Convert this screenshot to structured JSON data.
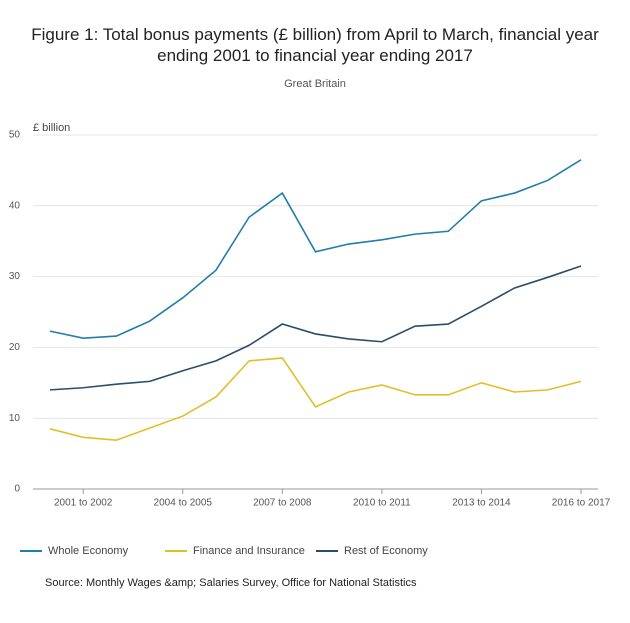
{
  "chart_data": {
    "type": "line",
    "title": "Figure 1: Total bonus payments (£ billion) from April to March, financial year ending 2001 to financial year ending 2017",
    "subtitle": "Great Britain",
    "y_label": "£ billion",
    "source": "Source: Monthly Wages &amp; Salaries Survey, Office for National Statistics",
    "categories": [
      null,
      "2001 to 2002",
      null,
      null,
      "2004 to 2005",
      null,
      null,
      "2007 to 2008",
      null,
      null,
      "2010 to 2011",
      null,
      null,
      "2013 to 2014",
      null,
      null,
      "2016 to 2017"
    ],
    "series": [
      {
        "name": "Whole Economy",
        "color": "#207fa9",
        "values": [
          22.3,
          21.3,
          21.6,
          23.7,
          27.0,
          30.9,
          38.4,
          41.8,
          33.5,
          34.6,
          35.2,
          36.0,
          36.4,
          40.7,
          41.8,
          43.6,
          46.5
        ]
      },
      {
        "name": "Finance and Insurance",
        "color": "#e2bf2a",
        "values": [
          8.5,
          7.3,
          6.9,
          8.6,
          10.3,
          13.0,
          18.1,
          18.5,
          11.6,
          13.7,
          14.7,
          13.3,
          13.3,
          15.0,
          13.7,
          14.0,
          15.2
        ]
      },
      {
        "name": "Rest of Economy",
        "color": "#2b4d6c",
        "values": [
          14.0,
          14.3,
          14.8,
          15.2,
          16.7,
          18.1,
          20.3,
          23.3,
          21.9,
          21.2,
          20.8,
          23.0,
          23.3,
          25.8,
          28.4,
          29.9,
          31.5
        ]
      }
    ],
    "ylim": [
      0,
      50
    ],
    "yticks": [
      0,
      10,
      20,
      30,
      40,
      50
    ],
    "grid": true
  }
}
